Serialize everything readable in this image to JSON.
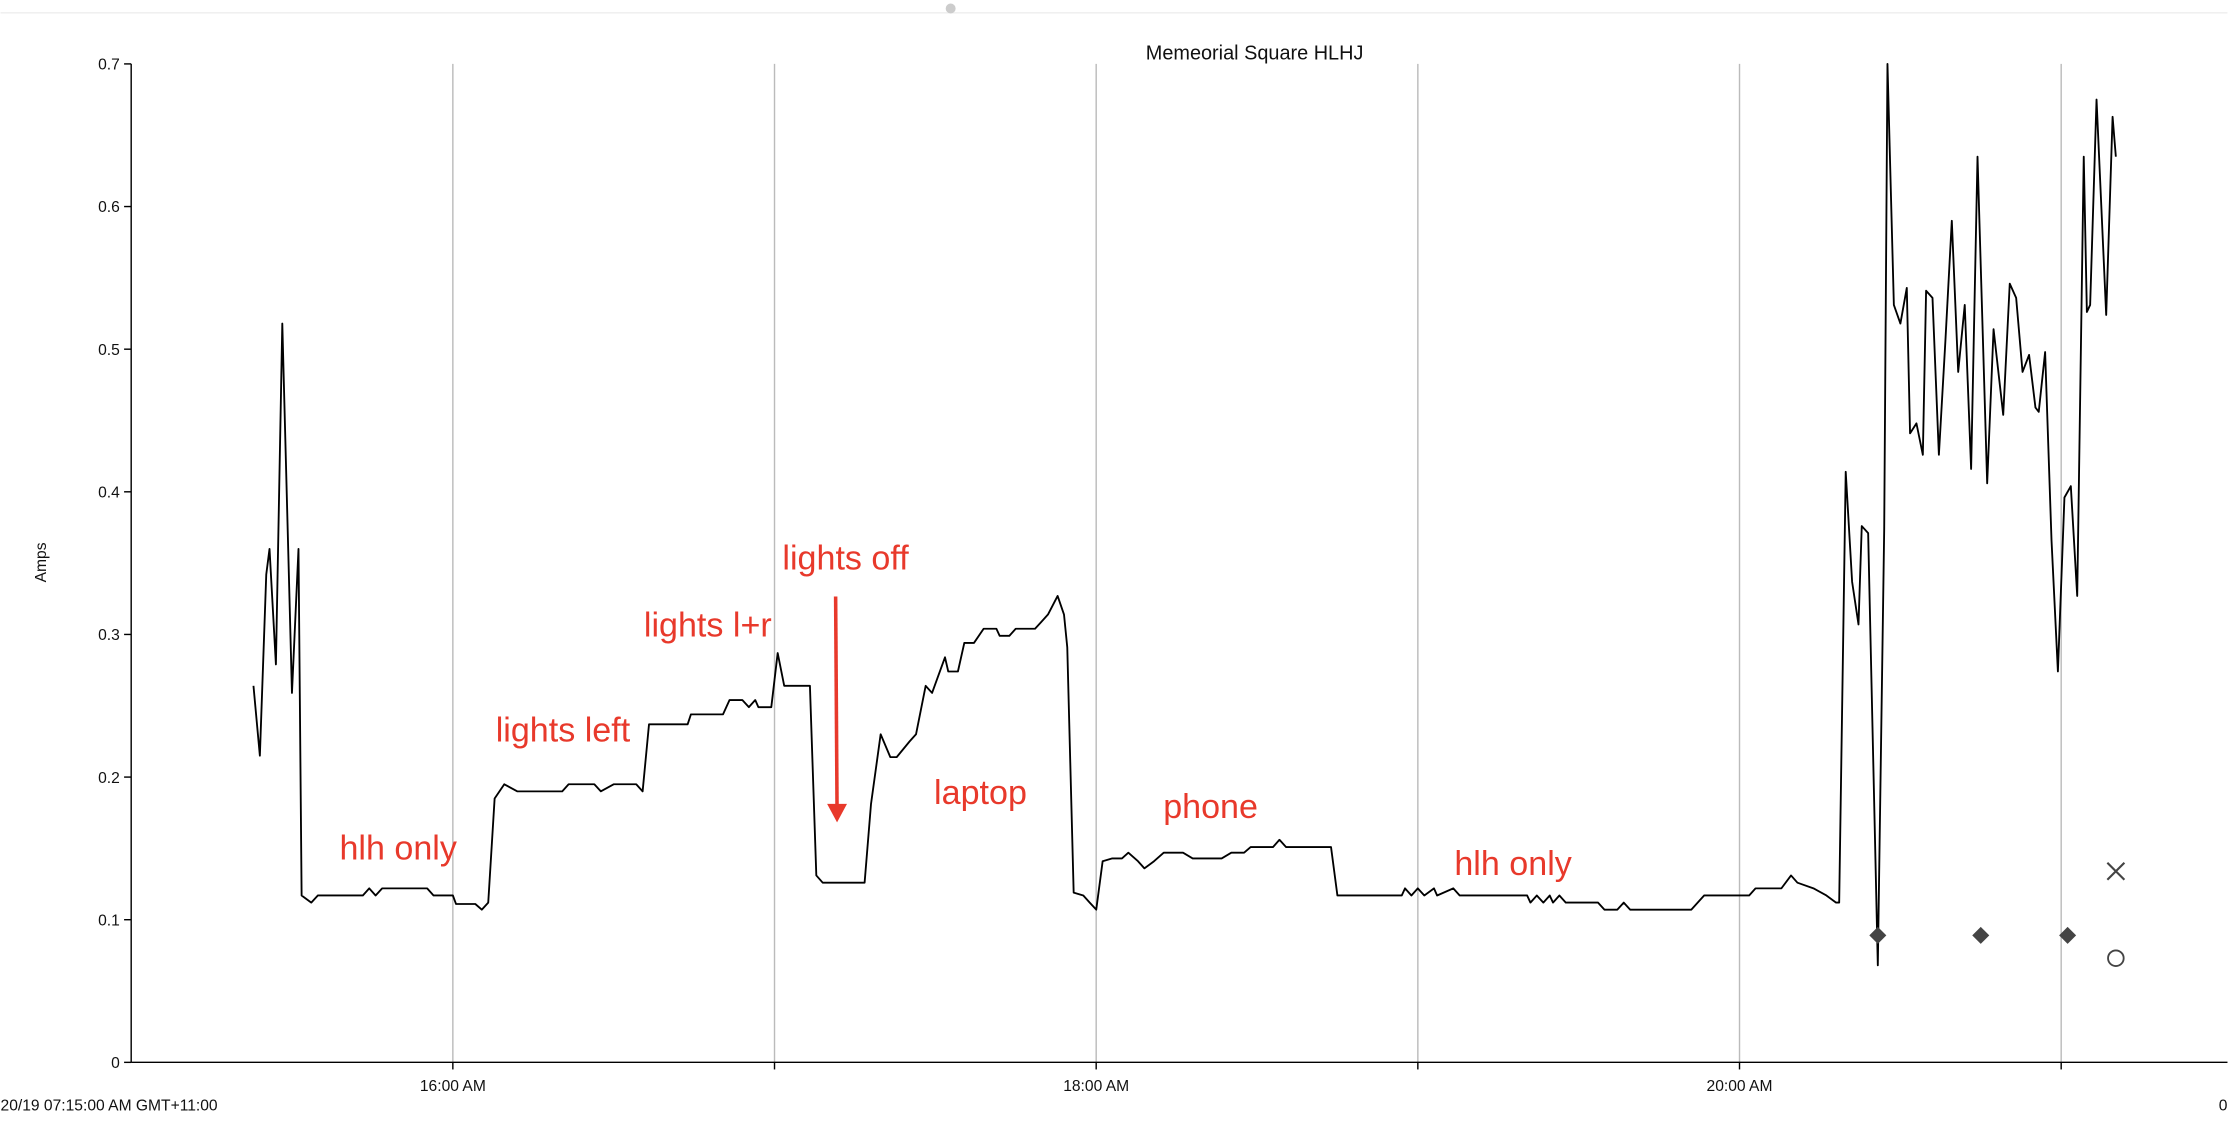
{
  "chart_data": {
    "type": "line",
    "title": "Memeorial Square HLHJ",
    "ylabel": "Amps",
    "start_label": "20/19 07:15:00 AM GMT+11:00",
    "end_label": "0",
    "xlim": [
      15,
      21.517
    ],
    "ylim": [
      0,
      0.7
    ],
    "xticks": [
      {
        "value": 16,
        "label": "16:00 AM"
      },
      {
        "value": 17,
        "label": null
      },
      {
        "value": 18,
        "label": "18:00 AM"
      },
      {
        "value": 19,
        "label": null
      },
      {
        "value": 20,
        "label": "20:00 AM"
      },
      {
        "value": 21,
        "label": null
      }
    ],
    "yticks": [
      0,
      0.1,
      0.2,
      0.3,
      0.4,
      0.5,
      0.6,
      0.7
    ],
    "grid": "x",
    "series": [
      {
        "color": "#000000",
        "x": [
          15.38,
          15.4,
          15.42,
          15.43,
          15.45,
          15.47,
          15.5,
          15.52,
          15.53,
          15.56,
          15.58,
          15.72,
          15.74,
          15.76,
          15.78,
          15.92,
          15.94,
          16.0,
          16.01,
          16.07,
          16.09,
          16.11,
          16.13,
          16.16,
          16.2,
          16.34,
          16.36,
          16.44,
          16.46,
          16.5,
          16.57,
          16.59,
          16.61,
          16.73,
          16.74,
          16.84,
          16.86,
          16.9,
          16.92,
          16.94,
          16.95,
          16.99,
          17.01,
          17.03,
          17.11,
          17.13,
          17.15,
          17.28,
          17.3,
          17.33,
          17.36,
          17.38,
          17.42,
          17.44,
          17.47,
          17.49,
          17.53,
          17.54,
          17.57,
          17.59,
          17.62,
          17.65,
          17.69,
          17.7,
          17.73,
          17.75,
          17.81,
          17.83,
          17.85,
          17.88,
          17.9,
          17.91,
          17.93,
          17.96,
          17.98,
          18.0,
          18.02,
          18.05,
          18.08,
          18.1,
          18.13,
          18.15,
          18.18,
          18.21,
          18.27,
          18.3,
          18.39,
          18.42,
          18.46,
          18.48,
          18.55,
          18.57,
          18.59,
          18.73,
          18.75,
          18.95,
          18.96,
          18.98,
          19.0,
          19.02,
          19.05,
          19.06,
          19.11,
          19.13,
          19.34,
          19.35,
          19.37,
          19.39,
          19.41,
          19.42,
          19.44,
          19.46,
          19.56,
          19.58,
          19.62,
          19.64,
          19.66,
          19.85,
          19.89,
          20.03,
          20.05,
          20.13,
          20.16,
          20.18,
          20.23,
          20.27,
          20.3,
          20.31,
          20.33,
          20.35,
          20.37,
          20.38,
          20.4,
          20.43,
          20.45,
          20.46,
          20.48,
          20.5,
          20.52,
          20.53,
          20.55,
          20.57,
          20.58,
          20.6,
          20.62,
          20.64,
          20.66,
          20.68,
          20.7,
          20.72,
          20.74,
          20.77,
          20.79,
          20.82,
          20.84,
          20.86,
          20.88,
          20.9,
          20.92,
          20.93,
          20.95,
          20.97,
          20.99,
          21.01,
          21.03,
          21.05,
          21.07,
          21.08,
          21.09,
          21.11,
          21.14,
          21.16,
          21.17
        ],
        "values": [
          0.264,
          0.215,
          0.342,
          0.36,
          0.279,
          0.518,
          0.259,
          0.36,
          0.117,
          0.112,
          0.117,
          0.117,
          0.122,
          0.117,
          0.122,
          0.122,
          0.117,
          0.117,
          0.111,
          0.111,
          0.107,
          0.112,
          0.185,
          0.195,
          0.19,
          0.19,
          0.195,
          0.195,
          0.19,
          0.195,
          0.195,
          0.19,
          0.237,
          0.237,
          0.244,
          0.244,
          0.254,
          0.254,
          0.249,
          0.254,
          0.249,
          0.249,
          0.287,
          0.264,
          0.264,
          0.131,
          0.126,
          0.126,
          0.181,
          0.23,
          0.214,
          0.214,
          0.225,
          0.23,
          0.264,
          0.259,
          0.284,
          0.274,
          0.274,
          0.294,
          0.294,
          0.304,
          0.304,
          0.299,
          0.299,
          0.304,
          0.304,
          0.309,
          0.314,
          0.327,
          0.314,
          0.291,
          0.119,
          0.117,
          0.112,
          0.107,
          0.141,
          0.143,
          0.143,
          0.147,
          0.141,
          0.136,
          0.141,
          0.147,
          0.147,
          0.143,
          0.143,
          0.147,
          0.147,
          0.151,
          0.151,
          0.156,
          0.151,
          0.151,
          0.117,
          0.117,
          0.122,
          0.117,
          0.122,
          0.117,
          0.122,
          0.117,
          0.122,
          0.117,
          0.117,
          0.112,
          0.117,
          0.112,
          0.117,
          0.112,
          0.117,
          0.112,
          0.112,
          0.107,
          0.107,
          0.112,
          0.107,
          0.107,
          0.117,
          0.117,
          0.122,
          0.122,
          0.131,
          0.126,
          0.122,
          0.117,
          0.112,
          0.112,
          0.414,
          0.337,
          0.307,
          0.376,
          0.371,
          0.068,
          0.374,
          0.7,
          0.531,
          0.518,
          0.543,
          0.441,
          0.448,
          0.426,
          0.541,
          0.536,
          0.426,
          0.506,
          0.59,
          0.484,
          0.531,
          0.416,
          0.635,
          0.406,
          0.514,
          0.454,
          0.546,
          0.536,
          0.484,
          0.496,
          0.459,
          0.456,
          0.498,
          0.366,
          0.274,
          0.396,
          0.404,
          0.327,
          0.635,
          0.526,
          0.531,
          0.675,
          0.524,
          0.663,
          0.635
        ]
      }
    ],
    "markers": [
      {
        "shape": "diamond",
        "color": "#444444",
        "x": [
          20.43,
          20.75,
          21.02
        ],
        "values": [
          0.089,
          0.089,
          0.089
        ]
      },
      {
        "shape": "cross",
        "color": "#444444",
        "x": [
          21.17
        ],
        "values": [
          0.134
        ]
      },
      {
        "shape": "circle",
        "color": "#444444",
        "x": [
          21.17
        ],
        "values": [
          0.073
        ]
      }
    ],
    "annotation_color": "#e8392b",
    "annotations": [
      "hlh only",
      "lights left",
      "lights l+r",
      "lights off",
      "laptop",
      "phone",
      "hlh only"
    ]
  }
}
